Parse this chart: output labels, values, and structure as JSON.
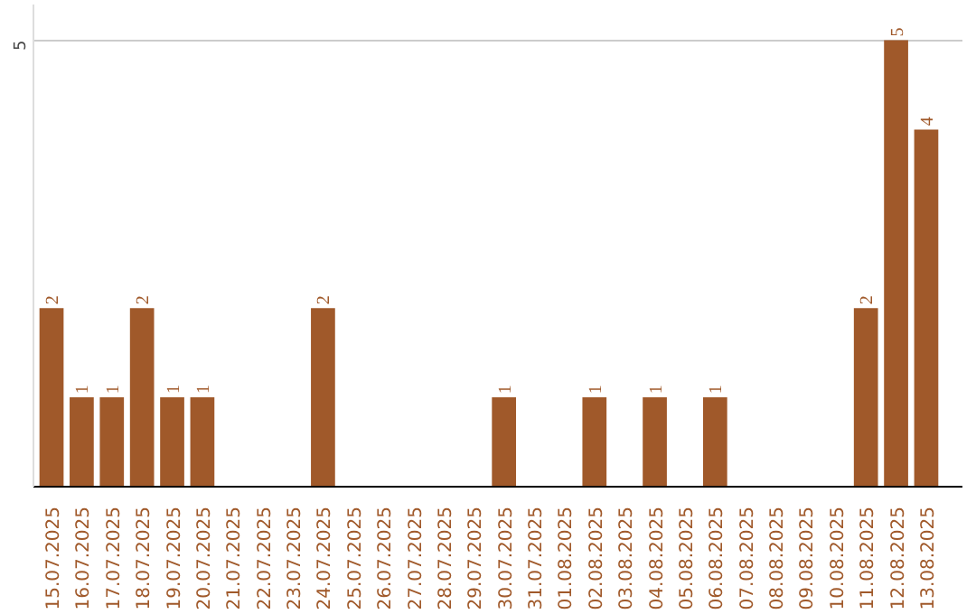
{
  "chart_data": {
    "type": "bar",
    "categories": [
      "15.07.2025",
      "16.07.2025",
      "17.07.2025",
      "18.07.2025",
      "19.07.2025",
      "20.07.2025",
      "21.07.2025",
      "22.07.2025",
      "23.07.2025",
      "24.07.2025",
      "25.07.2025",
      "26.07.2025",
      "27.07.2025",
      "28.07.2025",
      "29.07.2025",
      "30.07.2025",
      "31.07.2025",
      "01.08.2025",
      "02.08.2025",
      "03.08.2025",
      "04.08.2025",
      "05.08.2025",
      "06.08.2025",
      "07.08.2025",
      "08.08.2025",
      "09.08.2025",
      "10.08.2025",
      "11.08.2025",
      "12.08.2025",
      "13.08.2025"
    ],
    "values": [
      2,
      1,
      1,
      2,
      1,
      1,
      0,
      0,
      0,
      2,
      0,
      0,
      0,
      0,
      0,
      1,
      0,
      0,
      1,
      0,
      1,
      0,
      1,
      0,
      0,
      0,
      0,
      2,
      5,
      4
    ],
    "value_labels": [
      "2",
      "1",
      "1",
      "2",
      "1",
      "1",
      null,
      null,
      null,
      "2",
      null,
      null,
      null,
      null,
      null,
      "1",
      null,
      null,
      "1",
      null,
      "1",
      null,
      "1",
      null,
      null,
      null,
      null,
      "2",
      "5",
      "4"
    ],
    "color": "#a0592a",
    "ylim": [
      0,
      5.4
    ],
    "yticks": [
      5
    ],
    "grid": "y"
  }
}
